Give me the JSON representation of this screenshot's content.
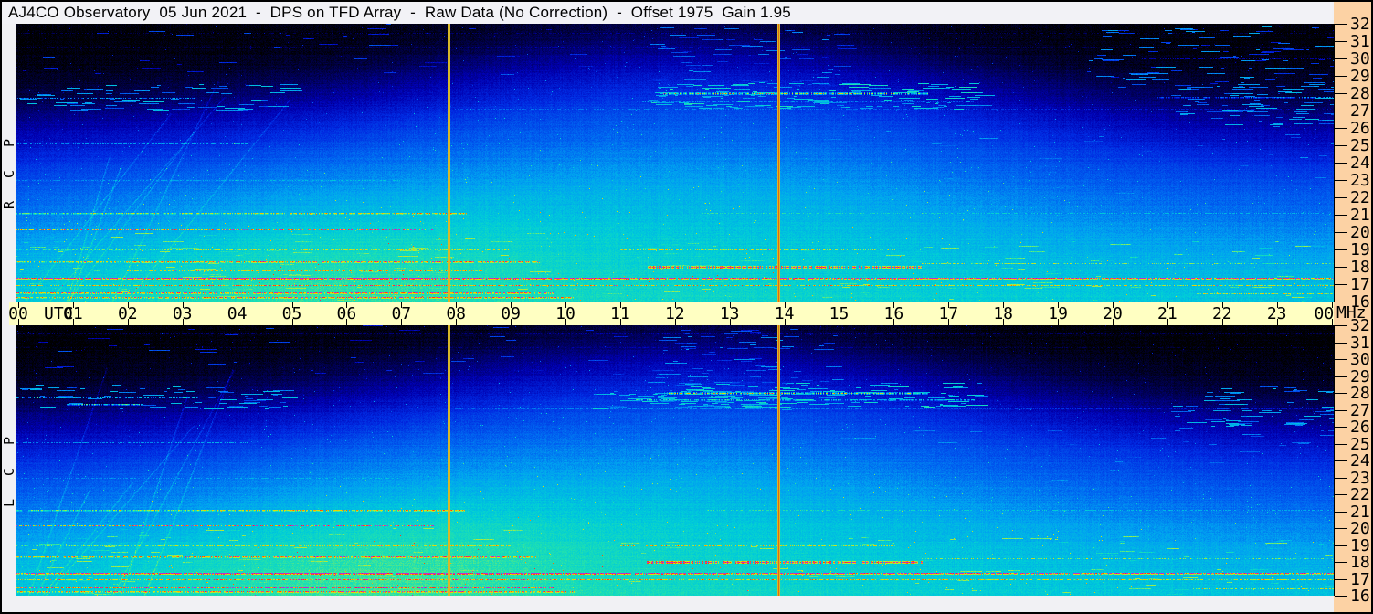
{
  "header": {
    "title": "AJ4CO Observatory  05 Jun 2021  -  DPS on TFD Array  -  Raw Data (No Correction)  -  Offset 1975  Gain 1.95"
  },
  "panels": [
    {
      "id": "rcp",
      "label": "RCP",
      "seed": 1234567,
      "blob": {
        "t": 5.2,
        "f": 18.6,
        "st": 3.1,
        "sf": 4.8,
        "amp": 0.1
      }
    },
    {
      "id": "lcp",
      "label": "LCP",
      "seed": 7654321,
      "blob": {
        "t": 6.0,
        "f": 18.3,
        "st": 3.4,
        "sf": 5.0,
        "amp": 0.11
      }
    }
  ],
  "time_axis": {
    "unit": "UTC",
    "mhz": "MHz",
    "hours": [
      "00",
      "01",
      "02",
      "03",
      "04",
      "05",
      "06",
      "07",
      "08",
      "09",
      "10",
      "11",
      "12",
      "13",
      "14",
      "15",
      "16",
      "17",
      "18",
      "19",
      "20",
      "21",
      "22",
      "23",
      "00"
    ]
  },
  "freq_axis": {
    "ticks": [
      "32",
      "31",
      "30",
      "29",
      "28",
      "27",
      "26",
      "25",
      "24",
      "23",
      "22",
      "21",
      "20",
      "19",
      "18",
      "17",
      "16"
    ]
  },
  "colors": {
    "frame": "#000000",
    "chrome": "#f1f1f4",
    "titlebar": "#f2f2f6",
    "axis_bg": "#ffffc2",
    "freq_bg": "#fcd2a4",
    "text": "#000000",
    "marker_core": "#e06c14",
    "marker_edge": "#d8b828"
  },
  "chart_data": {
    "type": "heatmap",
    "title": "AJ4CO Observatory 05 Jun 2021 - DPS on TFD Array - Raw Data (No Correction) - Offset 1975 Gain 1.95",
    "observatory": "AJ4CO Observatory",
    "date": "05 Jun 2021",
    "instrument": "DPS on TFD Array",
    "processing": "Raw Data (No Correction)",
    "offset": "1975",
    "gain": "1.95",
    "x_axis": {
      "label": "UTC",
      "range_hours": [
        0,
        24
      ],
      "tick_interval_hours": 1
    },
    "y_axis": {
      "label": "MHz",
      "range_mhz": [
        16,
        32
      ],
      "tick_interval_mhz": 1
    },
    "panel_names": [
      "RCP",
      "LCP"
    ],
    "vertical_markers_utc": [
      7.88,
      13.88
    ],
    "features": [
      "black ionospheric cutoff above ~27-30 MHz, lowest near 00 and 24 UTC, highest near midday",
      "bright galactic background enhancement ~01:00-09:00 UTC below ~24 MHz",
      "strong RFI/emission band 27.5-28.2 MHz ~12:00-16:30 UTC in both polarizations",
      "RCP band 27.8 MHz brightening 21:00-24:00 UTC",
      "continuous RFI lines near 17.4, 17.0 and 21.1 MHz across full day",
      "dense speckled RFI 16-18.5 MHz at 00-10 and 11-17 UTC with red/magenta saturation",
      "scattered blue ionosonde dashes 28-32 MHz near 12-15 and 20-24 UTC",
      "vertical event marker lines at ~07:53 and ~13:53 UTC spanning both panels"
    ],
    "colormap_stops": [
      [
        0.0,
        "#000000"
      ],
      [
        0.1,
        "#000058"
      ],
      [
        0.2,
        "#0000b0"
      ],
      [
        0.3,
        "#0028e0"
      ],
      [
        0.42,
        "#0064f0"
      ],
      [
        0.52,
        "#00a0f0"
      ],
      [
        0.62,
        "#00ccd8"
      ],
      [
        0.7,
        "#20e0b0"
      ],
      [
        0.78,
        "#90ee58"
      ],
      [
        0.85,
        "#e8e000"
      ],
      [
        0.9,
        "#ffb000"
      ],
      [
        0.945,
        "#ff5000"
      ],
      [
        0.97,
        "#ff2828"
      ],
      [
        1.0,
        "#c030c8"
      ]
    ],
    "freq_profile": [
      [
        16,
        0.63
      ],
      [
        17,
        0.62
      ],
      [
        18,
        0.605
      ],
      [
        19,
        0.585
      ],
      [
        20,
        0.56
      ],
      [
        21,
        0.53
      ],
      [
        22,
        0.49
      ],
      [
        23,
        0.45
      ],
      [
        24,
        0.41
      ],
      [
        25,
        0.37
      ],
      [
        26,
        0.32
      ],
      [
        27,
        0.26
      ],
      [
        28,
        0.2
      ],
      [
        29,
        0.14
      ],
      [
        30,
        0.08
      ],
      [
        31,
        0.04
      ],
      [
        32,
        0.02
      ]
    ],
    "day_shift": {
      "base": 2.6,
      "depth": 4.4,
      "center": 12.3,
      "sigma": 4.8
    },
    "noise": {
      "pixel": 0.05,
      "row": 0.012,
      "col": 0.01,
      "speckle_chance": 0.0025,
      "speckle_min": 0.1,
      "speckle_max": 0.3
    },
    "rays": {
      "count": 7,
      "t_max": 4,
      "amp": 0.05
    },
    "bands": [
      {
        "freq": 31.5,
        "t0": 0,
        "t1": 24,
        "boost": 0.09,
        "width": 1,
        "gap": 0.55,
        "panel": "both"
      },
      {
        "freq": 30.7,
        "t0": 0,
        "t1": 24,
        "boost": 0.06,
        "width": 1,
        "gap": 0.6,
        "panel": "both"
      },
      {
        "freq": 30.0,
        "t0": 20.5,
        "t1": 24,
        "boost": 0.16,
        "width": 1,
        "gap": 0.5,
        "panel": "rcp"
      },
      {
        "freq": 28.0,
        "t0": 11.8,
        "t1": 16.6,
        "boost": 0.58,
        "width": 3,
        "spiky": 1,
        "gap": 0.25,
        "panel": "both"
      },
      {
        "freq": 27.6,
        "t0": 11.3,
        "t1": 17.5,
        "boost": 0.33,
        "width": 2,
        "spiky": 1,
        "gap": 0.35,
        "panel": "both"
      },
      {
        "freq": 27.8,
        "t0": 20.8,
        "t1": 24,
        "boost": 0.5,
        "width": 2,
        "spiky": 1,
        "gap": 0.3,
        "ramp": 1,
        "panel": "rcp"
      },
      {
        "freq": 27.75,
        "t0": 0,
        "t1": 3.3,
        "boost": 0.45,
        "width": 1,
        "spiky": 1,
        "gap": 0.4,
        "panel": "both"
      },
      {
        "freq": 27.35,
        "t0": 0.9,
        "t1": 2.3,
        "boost": 0.55,
        "width": 2,
        "spiky": 1,
        "gap": 0.2,
        "panel": "lcp"
      },
      {
        "freq": 27.1,
        "t0": 8,
        "t1": 24,
        "boost": 0.11,
        "width": 1,
        "gap": 0.5,
        "panel": "both"
      },
      {
        "freq": 25.1,
        "t0": 0,
        "t1": 4.2,
        "boost": 0.22,
        "width": 1,
        "gap": 0.45,
        "panel": "both"
      },
      {
        "freq": 23.0,
        "t0": 0,
        "t1": 7,
        "boost": 0.1,
        "width": 1,
        "gap": 0.5,
        "panel": "both"
      },
      {
        "freq": 21.1,
        "t0": 0,
        "t1": 8.2,
        "boost": 0.3,
        "width": 2,
        "spiky": 1,
        "gap": 0.2,
        "panel": "both"
      },
      {
        "freq": 21.1,
        "t0": 12.5,
        "t1": 24,
        "boost": 0.13,
        "width": 1,
        "gap": 0.5,
        "panel": "both"
      },
      {
        "freq": 20.15,
        "t0": 0,
        "t1": 7.6,
        "boost": 0.42,
        "width": 1,
        "spiky": 1,
        "gap": 0.35,
        "panel": "both"
      },
      {
        "freq": 19.0,
        "t0": 0,
        "t1": 9,
        "boost": 0.2,
        "width": 1,
        "spiky": 1,
        "gap": 0.4,
        "panel": "both"
      },
      {
        "freq": 19.0,
        "t0": 11,
        "t1": 16,
        "boost": 0.24,
        "width": 1,
        "spiky": 1,
        "gap": 0.45,
        "panel": "both"
      },
      {
        "freq": 18.3,
        "t0": 0,
        "t1": 9.5,
        "boost": 0.3,
        "width": 2,
        "spiky": 1,
        "gap": 0.3,
        "panel": "both"
      },
      {
        "freq": 18.0,
        "t0": 11.5,
        "t1": 16.5,
        "boost": 0.52,
        "width": 3,
        "spiky": 1,
        "gap": 0.3,
        "panel": "both"
      },
      {
        "freq": 18.2,
        "t0": 16.5,
        "t1": 24,
        "boost": 0.22,
        "width": 1,
        "spiky": 1,
        "gap": 0.5,
        "panel": "both"
      },
      {
        "freq": 17.8,
        "t0": 2,
        "t1": 8.5,
        "boost": 0.22,
        "width": 1,
        "spiky": 1,
        "gap": 0.4,
        "panel": "both"
      },
      {
        "freq": 17.35,
        "t0": 0,
        "t1": 24,
        "boost": 0.5,
        "width": 2,
        "spiky": 1,
        "gap": 0.15,
        "panel": "both"
      },
      {
        "freq": 16.95,
        "t0": 0,
        "t1": 24,
        "boost": 0.28,
        "width": 1,
        "spiky": 1,
        "gap": 0.3,
        "panel": "both"
      },
      {
        "freq": 16.55,
        "t0": 0,
        "t1": 9.8,
        "boost": 0.34,
        "width": 2,
        "spiky": 1,
        "gap": 0.25,
        "panel": "both"
      },
      {
        "freq": 16.25,
        "t0": 0,
        "t1": 10.2,
        "boost": 0.3,
        "width": 2,
        "spiky": 1,
        "gap": 0.3,
        "panel": "both"
      },
      {
        "freq": 16.45,
        "t0": 21.5,
        "t1": 24,
        "boost": 0.26,
        "width": 1,
        "spiky": 1,
        "gap": 0.4,
        "panel": "both"
      }
    ],
    "clusters": [
      {
        "f0": 27.1,
        "f1": 28.6,
        "t0": 11.5,
        "t1": 17.5,
        "n": 150,
        "a": 0.45,
        "b": 0.68,
        "panel": "both"
      },
      {
        "f0": 28.4,
        "f1": 31.8,
        "t0": 11.5,
        "t1": 15,
        "n": 80,
        "a": 0.25,
        "b": 0.5,
        "panel": "both"
      },
      {
        "f0": 28.2,
        "f1": 31.8,
        "t0": 19.5,
        "t1": 24,
        "n": 110,
        "a": 0.25,
        "b": 0.55,
        "panel": "rcp"
      },
      {
        "f0": 26.0,
        "f1": 28.4,
        "t0": 21,
        "t1": 24,
        "n": 80,
        "a": 0.35,
        "b": 0.6,
        "panel": "both"
      },
      {
        "f0": 27.0,
        "f1": 28.5,
        "t0": 0,
        "t1": 5,
        "n": 70,
        "a": 0.35,
        "b": 0.6,
        "panel": "both"
      },
      {
        "f0": 27.0,
        "f1": 28.2,
        "t0": 10.5,
        "t1": 14.5,
        "n": 70,
        "a": 0.4,
        "b": 0.65,
        "panel": "lcp"
      },
      {
        "f0": 22.0,
        "f1": 26.0,
        "t0": 11,
        "t1": 24,
        "n": 60,
        "a": 0.3,
        "b": 0.5,
        "panel": "both"
      },
      {
        "f0": 16.0,
        "f1": 19.5,
        "t0": 10.5,
        "t1": 24,
        "n": 130,
        "a": 0.55,
        "b": 0.8,
        "panel": "both"
      },
      {
        "f0": 16.0,
        "f1": 20.0,
        "t0": 0,
        "t1": 9.5,
        "n": 150,
        "a": 0.55,
        "b": 0.8,
        "panel": "both"
      },
      {
        "f0": 29.0,
        "f1": 32.0,
        "t0": 0,
        "t1": 11,
        "n": 40,
        "a": 0.18,
        "b": 0.38,
        "panel": "both"
      }
    ]
  }
}
